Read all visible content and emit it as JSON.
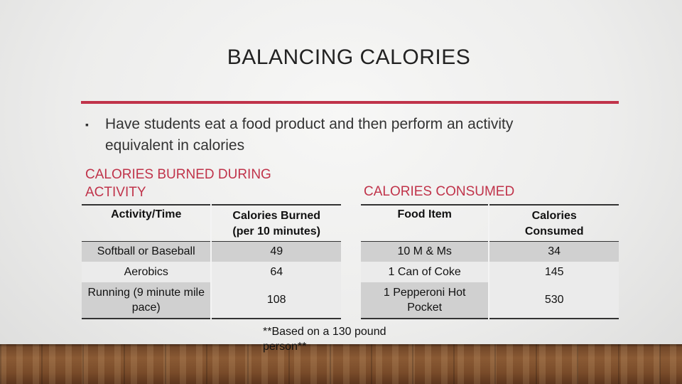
{
  "slide": {
    "title": "BALANCING CALORIES",
    "accent_color": "#c0334a",
    "bullet": {
      "icon": "square-bullet-icon",
      "text": "Have students eat a food product and then perform an activity equivalent in calories"
    },
    "left_heading": "CALORIES BURNED DURING ACTIVITY",
    "right_heading": "CALORIES CONSUMED",
    "burned_table": {
      "headers": [
        "Activity/Time",
        "Calories Burned (per 10 minutes)"
      ],
      "rows": [
        [
          "Softball or Baseball",
          "49"
        ],
        [
          "Aerobics",
          "64"
        ],
        [
          "Running (9 minute mile pace)",
          "108"
        ]
      ]
    },
    "consumed_table": {
      "headers": [
        "Food Item",
        "Calories Consumed"
      ],
      "rows": [
        [
          "10 M & Ms",
          "34"
        ],
        [
          "1 Can of Coke",
          "145"
        ],
        [
          "1 Pepperoni Hot Pocket",
          "530"
        ]
      ]
    },
    "footnote": "**Based on a 130 pound person**"
  }
}
